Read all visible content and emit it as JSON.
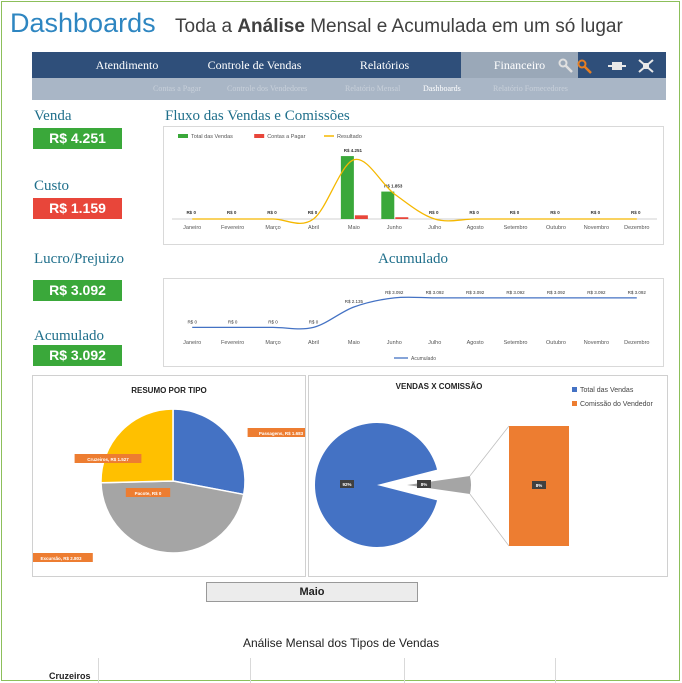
{
  "header": {
    "title": "Dashboards",
    "subtitle_pre": "Toda a ",
    "subtitle_bold": "Análise",
    "subtitle_post": " Mensal e Acumulada em um só lugar"
  },
  "nav": {
    "items": [
      {
        "label": "Atendimento"
      },
      {
        "label": "Controle de Vendas"
      },
      {
        "label": "Relatórios"
      },
      {
        "label": "Financeiro"
      }
    ],
    "active": "Financeiro",
    "subitems": [
      {
        "label": "Contas a Pagar"
      },
      {
        "label": "Controle dos Vendedores"
      },
      {
        "label": "Relatório Mensal"
      },
      {
        "label": "Dashboards"
      },
      {
        "label": "Relatório Fornecedores"
      }
    ],
    "active_sub": "Dashboards",
    "icons": [
      "wrench-icon",
      "tools-icon",
      "plug-icon",
      "network-icon"
    ]
  },
  "kpis": {
    "venda": {
      "label": "Venda",
      "value": "R$ 4.251",
      "color": "#3aa83a"
    },
    "custo": {
      "label": "Custo",
      "value": "R$ 1.159",
      "color": "#e8463a"
    },
    "lucro": {
      "label": "Lucro/Prejuizo",
      "value": "R$ 3.092",
      "color": "#3aa83a"
    },
    "acumulado": {
      "label": "Acumulado",
      "value": "R$ 3.092",
      "color": "#3aa83a"
    }
  },
  "sections": {
    "fluxo_title": "Fluxo das Vendas e Comissões",
    "acumulado_title": "Acumulado"
  },
  "chart_data": [
    {
      "type": "bar",
      "categories": [
        "Janeiro",
        "Fevereiro",
        "Março",
        "Abril",
        "Maio",
        "Junho",
        "Julho",
        "Agosto",
        "Setembro",
        "Outubro",
        "Novembro",
        "Dezembro"
      ],
      "series": [
        {
          "name": "Total das Vendas",
          "values": [
            0,
            0,
            0,
            0,
            4251,
            1853,
            0,
            0,
            0,
            0,
            0,
            0
          ],
          "color": "#3aa83a"
        },
        {
          "name": "Contas a Pagar",
          "values": [
            0,
            0,
            0,
            0,
            250,
            120,
            0,
            0,
            0,
            0,
            0,
            0
          ],
          "color": "#e8463a"
        },
        {
          "name": "Resultado",
          "values": [
            0,
            0,
            0,
            0,
            4000,
            1700,
            0,
            0,
            0,
            0,
            0,
            0
          ],
          "color": "#f5b800",
          "kind": "line"
        }
      ],
      "data_labels": [
        "R$ 0",
        "R$ 0",
        "R$ 0",
        "R$ 0",
        "R$ 4.251",
        "R$ 1.853",
        "R$ 0",
        "R$ 0",
        "R$ 0",
        "R$ 0",
        "R$ 0",
        "R$ 0"
      ],
      "ylim": [
        0,
        5000
      ],
      "legend": "top-left",
      "grid": false
    },
    {
      "type": "line",
      "categories": [
        "Janeiro",
        "Fevereiro",
        "Março",
        "Abril",
        "Maio",
        "Junho",
        "Julho",
        "Agosto",
        "Setembro",
        "Outubro",
        "Novembro",
        "Dezembro"
      ],
      "series": [
        {
          "name": "Acumulado",
          "values": [
            0,
            0,
            0,
            0,
            2135,
            3092,
            3092,
            3092,
            3092,
            3092,
            3092,
            3092
          ],
          "color": "#4472c4"
        }
      ],
      "data_labels": [
        "R$ 0",
        "R$ 0",
        "R$ 0",
        "R$ 0",
        "R$ 2.135",
        "R$ 3.092",
        "R$ 3.092",
        "R$ 3.092",
        "R$ 3.092",
        "R$ 3.092",
        "R$ 3.092",
        "R$ 3.092"
      ],
      "ylim": [
        -800,
        3600
      ],
      "legend": "bottom",
      "grid": false
    },
    {
      "type": "pie",
      "title": "RESUMO POR TIPO",
      "slices": [
        {
          "label": "Passagens, R$ 1.683",
          "value": 1683,
          "color": "#4472c4"
        },
        {
          "label": "Excursão, R$ 2.803",
          "value": 2803,
          "color": "#a5a5a5"
        },
        {
          "label": "Pacote, R$ 0",
          "value": 0,
          "color": "#ed7d31"
        },
        {
          "label": "Cruzeiros, R$ 1.527",
          "value": 1527,
          "color": "#ffc000"
        }
      ]
    },
    {
      "type": "pie",
      "title": "VENDAS X COMISSÃO",
      "slices": [
        {
          "label": "92%",
          "value": 92,
          "color": "#4472c4"
        },
        {
          "label": "8%",
          "value": 8,
          "color": "#a5a5a5"
        }
      ],
      "secondary_bar": {
        "label": "8%",
        "color": "#ed7d31"
      },
      "legend_items": [
        {
          "name": "Total das Vendas",
          "color": "#4472c4"
        },
        {
          "name": "Comissão do Vendedor",
          "color": "#ed7d31"
        }
      ],
      "legend": "top-right"
    }
  ],
  "selector": {
    "value": "Maio"
  },
  "bottom": {
    "title": "Análise Mensal dos Tipos de Vendas",
    "row_label": "Cruzeiros"
  }
}
